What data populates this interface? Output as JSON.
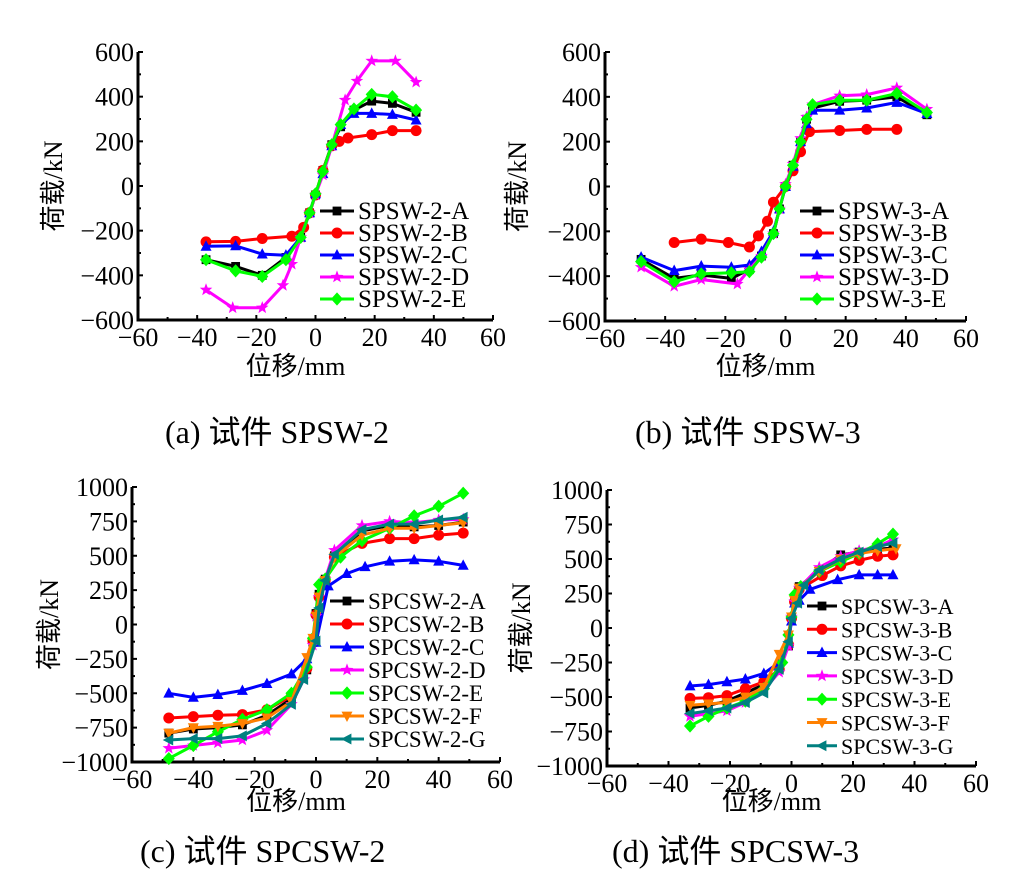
{
  "chart_data": [
    {
      "panel": "a",
      "type": "line",
      "caption": "(a)  试件 SPSW-2",
      "xlabel": "位移/mm",
      "ylabel": "荷载/kN",
      "xlim": [
        -60,
        60
      ],
      "ylim": [
        -600,
        600
      ],
      "xticks": [
        -60,
        -40,
        -20,
        0,
        20,
        40,
        60
      ],
      "yticks": [
        -600,
        -400,
        -200,
        0,
        200,
        400,
        600
      ],
      "grid": false,
      "legend_position": "bottom-right",
      "series": [
        {
          "name": "SPSW-2-A",
          "color": "#000000",
          "marker": "square",
          "x": [
            -37,
            -27,
            -18,
            -10,
            -5,
            -2,
            0,
            2.5,
            5.5,
            8.5,
            13,
            19,
            26,
            34
          ],
          "y": [
            -330,
            -360,
            -400,
            -320,
            -230,
            -120,
            -40,
            70,
            185,
            265,
            340,
            380,
            370,
            330
          ]
        },
        {
          "name": "SPSW-2-B",
          "color": "#ff0000",
          "marker": "circle",
          "x": [
            -37,
            -27,
            -18,
            -8,
            -4,
            -2,
            0,
            2.5,
            5.5,
            8,
            11,
            19,
            26,
            34
          ],
          "y": [
            -250,
            -248,
            -235,
            -225,
            -185,
            -120,
            -40,
            70,
            180,
            200,
            215,
            230,
            248,
            248
          ]
        },
        {
          "name": "SPSW-2-C",
          "color": "#0000ff",
          "marker": "triangle-up",
          "x": [
            -37,
            -27,
            -18,
            -10,
            -5,
            -2,
            0,
            2.5,
            5.5,
            8.5,
            13,
            19,
            26,
            34
          ],
          "y": [
            -270,
            -268,
            -305,
            -310,
            -230,
            -120,
            -35,
            55,
            180,
            275,
            325,
            325,
            320,
            295
          ]
        },
        {
          "name": "SPSW-2-D",
          "color": "#ff00ff",
          "marker": "star",
          "x": [
            -37,
            -28,
            -18,
            -11,
            -8,
            -5,
            -2,
            0,
            2.5,
            5.5,
            10,
            14,
            19,
            27,
            34
          ],
          "y": [
            -465,
            -545,
            -545,
            -445,
            -350,
            -230,
            -120,
            -40,
            50,
            180,
            385,
            470,
            560,
            560,
            465
          ]
        },
        {
          "name": "SPSW-2-E",
          "color": "#00ff00",
          "marker": "diamond",
          "x": [
            -37,
            -27,
            -18,
            -10,
            -5,
            -2,
            0,
            2.5,
            5.5,
            8.5,
            13,
            19,
            26,
            34
          ],
          "y": [
            -330,
            -380,
            -405,
            -330,
            -230,
            -120,
            -35,
            65,
            185,
            275,
            345,
            410,
            400,
            340
          ]
        }
      ]
    },
    {
      "panel": "b",
      "type": "line",
      "caption": "(b)  试件 SPSW-3",
      "xlabel": "位移/mm",
      "ylabel": "荷载/kN",
      "xlim": [
        -60,
        60
      ],
      "ylim": [
        -600,
        600
      ],
      "xticks": [
        -60,
        -40,
        -20,
        0,
        20,
        40,
        60
      ],
      "yticks": [
        -600,
        -400,
        -200,
        0,
        200,
        400,
        600
      ],
      "grid": false,
      "legend_position": "bottom-right",
      "series": [
        {
          "name": "SPSW-3-A",
          "color": "#000000",
          "marker": "square",
          "x": [
            -48,
            -37,
            -28,
            -18,
            -12,
            -8,
            -4,
            -2,
            0,
            2.5,
            5,
            7,
            9,
            18,
            27,
            37,
            47
          ],
          "y": [
            -325,
            -410,
            -395,
            -410,
            -370,
            -310,
            -210,
            -100,
            0,
            95,
            200,
            300,
            350,
            380,
            385,
            400,
            320
          ]
        },
        {
          "name": "SPSW-3-B",
          "color": "#ff0000",
          "marker": "circle",
          "x": [
            -37,
            -28,
            -19,
            -12,
            -9,
            -6,
            -4,
            0,
            2.5,
            5,
            8,
            18,
            27,
            37
          ],
          "y": [
            -250,
            -235,
            -250,
            -270,
            -220,
            -155,
            -70,
            0,
            70,
            155,
            245,
            250,
            255,
            255
          ]
        },
        {
          "name": "SPSW-3-C",
          "color": "#0000ff",
          "marker": "triangle-up",
          "x": [
            -48,
            -37,
            -28,
            -18,
            -12,
            -8,
            -4,
            -2,
            0,
            2.5,
            5,
            7,
            9,
            18,
            27,
            37,
            47
          ],
          "y": [
            -315,
            -375,
            -355,
            -360,
            -350,
            -290,
            -200,
            -100,
            0,
            90,
            200,
            280,
            340,
            340,
            350,
            375,
            325
          ]
        },
        {
          "name": "SPSW-3-D",
          "color": "#ff00ff",
          "marker": "star",
          "x": [
            -48,
            -37,
            -28,
            -16,
            -12,
            -8,
            -4,
            -2,
            0,
            2.5,
            5,
            7,
            9,
            18,
            27,
            37,
            47
          ],
          "y": [
            -360,
            -445,
            -415,
            -435,
            -370,
            -310,
            -210,
            -100,
            10,
            100,
            215,
            310,
            365,
            405,
            410,
            440,
            345
          ]
        },
        {
          "name": "SPSW-3-E",
          "color": "#00ff00",
          "marker": "diamond",
          "x": [
            -48,
            -37,
            -28,
            -18,
            -12,
            -8,
            -4,
            -2,
            0,
            2.5,
            5,
            7,
            9,
            18,
            27,
            37,
            47
          ],
          "y": [
            -335,
            -425,
            -390,
            -385,
            -380,
            -315,
            -210,
            -100,
            0,
            95,
            200,
            300,
            365,
            385,
            385,
            415,
            330
          ]
        }
      ]
    },
    {
      "panel": "c",
      "type": "line",
      "caption": "(c)  试件 SPCSW-2",
      "xlabel": "位移/mm",
      "ylabel": "荷载/kN",
      "xlim": [
        -60,
        60
      ],
      "ylim": [
        -1000,
        1000
      ],
      "xticks": [
        -60,
        -40,
        -20,
        0,
        20,
        40,
        60
      ],
      "yticks": [
        -1000,
        -750,
        -500,
        -250,
        0,
        250,
        500,
        750,
        1000
      ],
      "grid": false,
      "legend_position": "bottom-right",
      "series": [
        {
          "name": "SPCSW-2-A",
          "color": "#000000",
          "marker": "square",
          "x": [
            -48,
            -40,
            -32,
            -24,
            -16,
            -8,
            -3,
            -1,
            0,
            1,
            3,
            6,
            15,
            24,
            32,
            40,
            48
          ],
          "y": [
            -790,
            -760,
            -750,
            -730,
            -660,
            -540,
            -330,
            -130,
            80,
            220,
            330,
            500,
            680,
            720,
            710,
            720,
            745
          ]
        },
        {
          "name": "SPCSW-2-B",
          "color": "#ff0000",
          "marker": "circle",
          "x": [
            -48,
            -40,
            -32,
            -24,
            -16,
            -8,
            -3,
            -1,
            0,
            1,
            3,
            6,
            15,
            24,
            32,
            40,
            48
          ],
          "y": [
            -680,
            -670,
            -660,
            -655,
            -620,
            -520,
            -320,
            -120,
            70,
            200,
            320,
            490,
            590,
            625,
            625,
            650,
            665
          ]
        },
        {
          "name": "SPCSW-2-C",
          "color": "#0000ff",
          "marker": "triangle-up",
          "x": [
            -48,
            -40,
            -32,
            -24,
            -16,
            -8,
            -3,
            0,
            4,
            10,
            16,
            24,
            32,
            40,
            48
          ],
          "y": [
            -500,
            -530,
            -510,
            -480,
            -430,
            -360,
            -250,
            -130,
            280,
            370,
            420,
            460,
            470,
            460,
            430
          ]
        },
        {
          "name": "SPCSW-2-D",
          "color": "#ff00ff",
          "marker": "star",
          "x": [
            -48,
            -40,
            -32,
            -24,
            -16,
            -8,
            -4,
            -1,
            0,
            1,
            3,
            6,
            15,
            24,
            32,
            40,
            48
          ],
          "y": [
            -900,
            -880,
            -860,
            -840,
            -770,
            -580,
            -400,
            -150,
            60,
            200,
            330,
            540,
            720,
            750,
            740,
            760,
            765
          ]
        },
        {
          "name": "SPCSW-2-E",
          "color": "#00ff00",
          "marker": "diamond",
          "x": [
            -48,
            -40,
            -32,
            -24,
            -16,
            -8,
            -3,
            -1,
            1,
            3,
            8,
            15,
            24,
            32,
            40,
            48
          ],
          "y": [
            -975,
            -880,
            -780,
            -690,
            -620,
            -500,
            -310,
            -100,
            290,
            330,
            490,
            610,
            700,
            790,
            860,
            955
          ]
        },
        {
          "name": "SPCSW-2-F",
          "color": "#ff8000",
          "marker": "triangle-down",
          "x": [
            -48,
            -40,
            -32,
            -24,
            -16,
            -8,
            -3,
            -1,
            0,
            1,
            3,
            6,
            15,
            24,
            32,
            40,
            48
          ],
          "y": [
            -790,
            -750,
            -740,
            -720,
            -680,
            -560,
            -240,
            -100,
            60,
            200,
            320,
            490,
            650,
            700,
            700,
            720,
            740
          ]
        },
        {
          "name": "SPCSW-2-G",
          "color": "#008080",
          "marker": "triangle-left",
          "x": [
            -48,
            -40,
            -32,
            -24,
            -16,
            -8,
            -4,
            0,
            1,
            3,
            6,
            15,
            24,
            32,
            40,
            48
          ],
          "y": [
            -840,
            -830,
            -830,
            -810,
            -720,
            -580,
            -400,
            -120,
            120,
            320,
            510,
            690,
            730,
            730,
            760,
            780
          ]
        }
      ]
    },
    {
      "panel": "d",
      "type": "line",
      "caption": "(d)  试件 SPCSW-3",
      "xlabel": "位移/mm",
      "ylabel": "荷载/kN",
      "xlim": [
        -60,
        60
      ],
      "ylim": [
        -1000,
        1000
      ],
      "xticks": [
        -60,
        -40,
        -20,
        0,
        20,
        40,
        60
      ],
      "yticks": [
        -1000,
        -750,
        -500,
        -250,
        0,
        250,
        500,
        750,
        1000
      ],
      "grid": false,
      "legend_position": "bottom-right",
      "series": [
        {
          "name": "SPCSW-3-A",
          "color": "#000000",
          "marker": "square",
          "x": [
            -33,
            -27,
            -21,
            -15,
            -9,
            -4,
            -1,
            0,
            1,
            2.5,
            9,
            16,
            22,
            28,
            33
          ],
          "y": [
            -580,
            -560,
            -530,
            -470,
            -410,
            -300,
            -130,
            80,
            200,
            300,
            420,
            530,
            550,
            570,
            580
          ]
        },
        {
          "name": "SPCSW-3-B",
          "color": "#ff0000",
          "marker": "circle",
          "x": [
            -33,
            -27,
            -21,
            -15,
            -9,
            -4,
            -1,
            0,
            1,
            2.5,
            10,
            16,
            22,
            28,
            33
          ],
          "y": [
            -510,
            -505,
            -490,
            -440,
            -390,
            -300,
            -120,
            70,
            190,
            280,
            380,
            450,
            490,
            520,
            530
          ]
        },
        {
          "name": "SPCSW-3-C",
          "color": "#0000ff",
          "marker": "triangle-up",
          "x": [
            -33,
            -27,
            -21,
            -15,
            -9,
            -4,
            -1,
            0,
            1,
            2.5,
            6,
            15,
            22,
            28,
            33
          ],
          "y": [
            -420,
            -410,
            -390,
            -370,
            -330,
            -250,
            -110,
            50,
            180,
            200,
            280,
            350,
            385,
            385,
            385
          ]
        },
        {
          "name": "SPCSW-3-D",
          "color": "#ff00ff",
          "marker": "star",
          "x": [
            -33,
            -27,
            -21,
            -15,
            -9,
            -4,
            -1,
            0,
            1,
            2.5,
            9,
            16,
            22,
            28,
            33
          ],
          "y": [
            -640,
            -620,
            -600,
            -540,
            -450,
            -320,
            -130,
            80,
            190,
            290,
            440,
            520,
            560,
            590,
            640
          ]
        },
        {
          "name": "SPCSW-3-E",
          "color": "#00ff00",
          "marker": "diamond",
          "x": [
            -33,
            -27,
            -21,
            -15,
            -9,
            -3,
            -1,
            0,
            1,
            3,
            9,
            16,
            22,
            28,
            33
          ],
          "y": [
            -710,
            -640,
            -580,
            -530,
            -440,
            -250,
            -50,
            80,
            240,
            300,
            410,
            480,
            540,
            610,
            680
          ]
        },
        {
          "name": "SPCSW-3-F",
          "color": "#ff8000",
          "marker": "triangle-down",
          "x": [
            -33,
            -27,
            -21,
            -15,
            -9,
            -4,
            -1,
            0,
            1,
            2.5,
            9,
            16,
            22,
            28,
            34
          ],
          "y": [
            -560,
            -550,
            -540,
            -500,
            -430,
            -190,
            -50,
            80,
            200,
            290,
            410,
            500,
            540,
            560,
            575
          ]
        },
        {
          "name": "SPCSW-3-G",
          "color": "#008080",
          "marker": "triangle-left",
          "x": [
            -33,
            -27,
            -21,
            -15,
            -9,
            -4,
            -1,
            0,
            2,
            4,
            9,
            16,
            22,
            28,
            33
          ],
          "y": [
            -620,
            -600,
            -580,
            -540,
            -470,
            -300,
            -100,
            70,
            180,
            310,
            420,
            500,
            550,
            590,
            615
          ]
        }
      ]
    }
  ]
}
